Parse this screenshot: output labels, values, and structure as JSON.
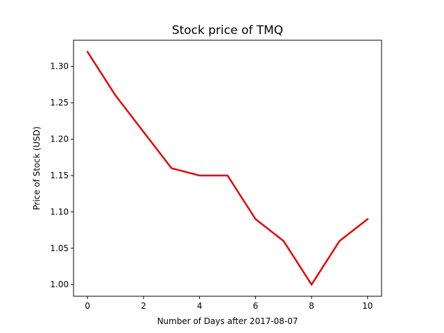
{
  "chart_data": {
    "type": "line",
    "title": "Stock price of TMQ",
    "xlabel": "Number of Days after 2017-08-07",
    "ylabel": "Price of Stock (USD)",
    "x": [
      0,
      1,
      2,
      3,
      4,
      5,
      6,
      7,
      8,
      9,
      10
    ],
    "series": [
      {
        "values": [
          1.32,
          1.26,
          1.21,
          1.16,
          1.15,
          1.15,
          1.09,
          1.06,
          1.0,
          1.06,
          1.09
        ],
        "color": "#e60000"
      }
    ],
    "xlim": [
      -0.5,
      10.5
    ],
    "ylim": [
      0.984,
      1.336
    ],
    "xticks": [
      "0",
      "2",
      "4",
      "6",
      "8",
      "10"
    ],
    "yticks": [
      "1.00",
      "1.05",
      "1.10",
      "1.15",
      "1.20",
      "1.25",
      "1.30"
    ],
    "grid": false,
    "legend": "none"
  }
}
